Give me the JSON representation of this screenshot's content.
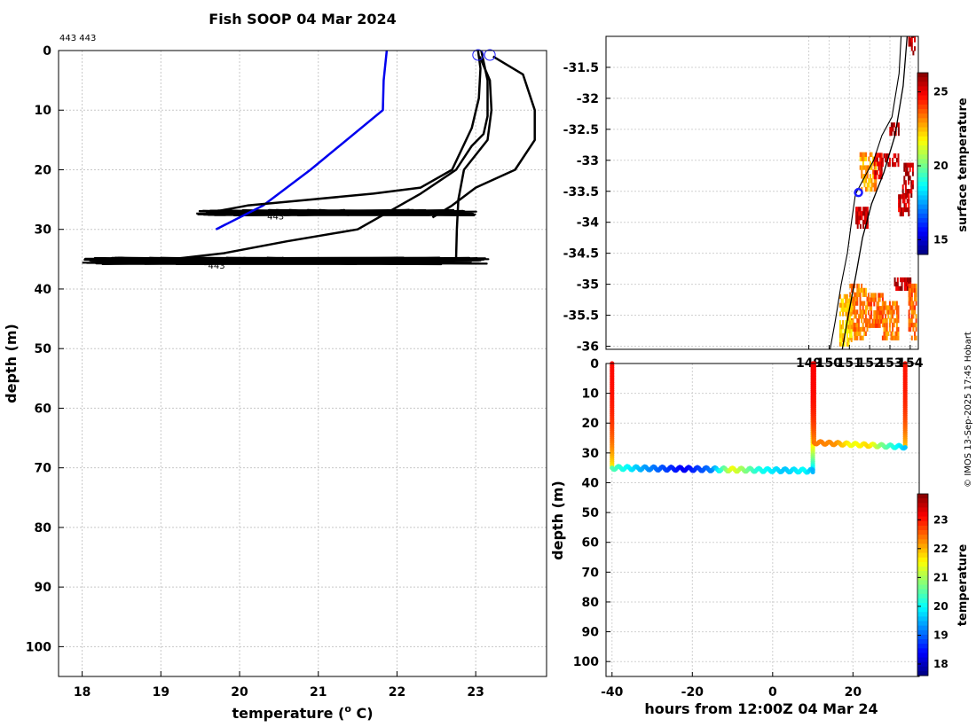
{
  "credit": "© IMOS 13-Sep-2025 17:45 Hobart",
  "colors": {
    "profile": "#000000",
    "climatology": "#0000ee",
    "marker": "#1a1aff"
  },
  "chart_data": [
    {
      "id": "profile",
      "type": "line",
      "title": "Fish SOOP 04 Mar 2024",
      "tag": "443 443",
      "xlabel": "temperature (o C)",
      "xlabel_main": "temperature (",
      "xlabel_sup": "o",
      "xlabel_end": " C)",
      "ylabel": "depth (m)",
      "xlim": [
        17.7,
        23.9
      ],
      "ylim": [
        105,
        0
      ],
      "xticks": [
        18,
        19,
        20,
        21,
        22,
        23
      ],
      "yticks": [
        0,
        10,
        20,
        30,
        40,
        50,
        60,
        70,
        80,
        90,
        100
      ],
      "series": [
        {
          "name": "climatology",
          "color": "blue",
          "points": [
            [
              21.87,
              0
            ],
            [
              21.83,
              5
            ],
            [
              21.82,
              10
            ],
            [
              20.9,
              20
            ],
            [
              20.3,
              26
            ],
            [
              19.7,
              30
            ]
          ]
        },
        {
          "name": "cast A",
          "color": "black",
          "points": [
            [
              23.03,
              0
            ],
            [
              23.06,
              3
            ],
            [
              23.04,
              8
            ],
            [
              22.95,
              13
            ],
            [
              22.7,
              20
            ],
            [
              22.3,
              23
            ],
            [
              21.7,
              24
            ],
            [
              20.9,
              25
            ],
            [
              20.1,
              26
            ],
            [
              19.7,
              27
            ]
          ]
        },
        {
          "name": "cast B",
          "color": "black",
          "points": [
            [
              23.07,
              0
            ],
            [
              23.15,
              5
            ],
            [
              23.15,
              11
            ],
            [
              23.1,
              14
            ],
            [
              22.95,
              16
            ],
            [
              22.75,
              20
            ],
            [
              22.3,
              24
            ],
            [
              21.5,
              30
            ],
            [
              20.6,
              32
            ],
            [
              19.8,
              34
            ],
            [
              18.8,
              35.5
            ]
          ]
        },
        {
          "name": "cast C",
          "color": "black",
          "points": [
            [
              23.22,
              1
            ],
            [
              23.6,
              4
            ],
            [
              23.75,
              10
            ],
            [
              23.75,
              15
            ],
            [
              23.5,
              20
            ],
            [
              23.0,
              23
            ],
            [
              22.7,
              26
            ],
            [
              22.45,
              28
            ]
          ]
        },
        {
          "name": "cast D",
          "color": "black",
          "points": [
            [
              23.05,
              1
            ],
            [
              23.18,
              5
            ],
            [
              23.2,
              10
            ],
            [
              23.15,
              15
            ],
            [
              22.85,
              20
            ],
            [
              22.78,
              25
            ],
            [
              22.76,
              30
            ],
            [
              22.75,
              35
            ]
          ]
        }
      ],
      "noisy_layers": [
        {
          "depth": 27.2,
          "x_min": 19.45,
          "x_max": 23.02,
          "spread": 0.9
        },
        {
          "depth": 35.3,
          "x_min": 18.0,
          "x_max": 23.18,
          "spread": 1.1
        }
      ],
      "surface_markers": [
        23.03,
        23.18
      ],
      "labels": [
        {
          "text": "443",
          "x": 20.35,
          "depth": 28.3
        },
        {
          "text": "443",
          "x": 19.6,
          "depth": 36.6
        }
      ]
    },
    {
      "id": "map",
      "type": "heatmap",
      "xlim": [
        139.0,
        154.4
      ],
      "ylim": [
        -36.05,
        -31.0
      ],
      "xticks": [
        149,
        150,
        151,
        152,
        153,
        154
      ],
      "xtick_labels": [
        "149",
        "150",
        "151",
        "152",
        "153",
        "154"
      ],
      "yticks": [
        -31.5,
        -32,
        -32.5,
        -33,
        -33.5,
        -34,
        -34.5,
        -35,
        -35.5,
        -36
      ],
      "ytick_labels": [
        "-31.5",
        "-32",
        "-32.5",
        "-33",
        "-33.5",
        "-34",
        "-34.5",
        "-35",
        "-35.5",
        "-36"
      ],
      "colorbar": {
        "label": "surface temperature",
        "range": [
          14.0,
          26.3
        ],
        "ticks": [
          15,
          20,
          25
        ],
        "tick_labels": [
          "15",
          "20",
          "25"
        ]
      },
      "marker": {
        "lon": 151.45,
        "lat": -33.52
      },
      "coast": [
        [
          153.55,
          -31.0
        ],
        [
          153.45,
          -31.6
        ],
        [
          153.1,
          -32.3
        ],
        [
          152.6,
          -32.6
        ],
        [
          152.2,
          -33.0
        ],
        [
          151.7,
          -33.3
        ],
        [
          151.3,
          -33.55
        ],
        [
          151.1,
          -34.0
        ],
        [
          150.9,
          -34.5
        ],
        [
          150.6,
          -35.0
        ],
        [
          150.3,
          -35.6
        ],
        [
          150.05,
          -36.05
        ]
      ],
      "track": [
        [
          153.85,
          -31.0
        ],
        [
          153.65,
          -31.8
        ],
        [
          153.25,
          -32.6
        ],
        [
          152.7,
          -33.2
        ],
        [
          152.1,
          -33.7
        ],
        [
          151.65,
          -34.25
        ],
        [
          151.35,
          -34.8
        ],
        [
          150.95,
          -35.5
        ],
        [
          150.65,
          -36.05
        ]
      ],
      "sst_patches": [
        {
          "lon": [
            151.0,
            151.9
          ],
          "lat": [
            -35.0,
            -35.9
          ],
          "temp": 23.2
        },
        {
          "lon": [
            150.5,
            151.1
          ],
          "lat": [
            -35.2,
            -36.0
          ],
          "temp": 22.3
        },
        {
          "lon": [
            151.9,
            152.6
          ],
          "lat": [
            -35.2,
            -35.7
          ],
          "temp": 23.6
        },
        {
          "lon": [
            151.5,
            152.3
          ],
          "lat": [
            -32.9,
            -33.5
          ],
          "temp": 22.8
        },
        {
          "lon": [
            152.2,
            152.6
          ],
          "lat": [
            -32.9,
            -33.3
          ],
          "temp": 25.2
        },
        {
          "lon": [
            151.3,
            151.9
          ],
          "lat": [
            -33.8,
            -34.1
          ],
          "temp": 25.3
        },
        {
          "lon": [
            152.9,
            153.4
          ],
          "lat": [
            -32.4,
            -32.6
          ],
          "temp": 25.6
        },
        {
          "lon": [
            152.6,
            153.4
          ],
          "lat": [
            -32.9,
            -33.1
          ],
          "temp": 25.5
        },
        {
          "lon": [
            153.6,
            154.1
          ],
          "lat": [
            -33.1,
            -33.6
          ],
          "temp": 25.6
        },
        {
          "lon": [
            153.4,
            153.9
          ],
          "lat": [
            -33.6,
            -33.9
          ],
          "temp": 25.3
        },
        {
          "lon": [
            153.2,
            154.0
          ],
          "lat": [
            -34.9,
            -35.1
          ],
          "temp": 25.6
        },
        {
          "lon": [
            153.9,
            154.3
          ],
          "lat": [
            -35.0,
            -35.9
          ],
          "temp": 23.5
        },
        {
          "lon": [
            152.6,
            153.4
          ],
          "lat": [
            -35.3,
            -35.9
          ],
          "temp": 23.3
        },
        {
          "lon": [
            153.9,
            154.2
          ],
          "lat": [
            -31.0,
            -31.3
          ],
          "temp": 25.6
        }
      ]
    },
    {
      "id": "timeseries",
      "type": "scatter",
      "xlabel": "hours from 12:00Z 04 Mar 24",
      "ylabel": "depth (m)",
      "xlim": [
        -41.5,
        36.5
      ],
      "ylim": [
        105,
        0
      ],
      "xticks": [
        -40,
        -20,
        0,
        20
      ],
      "yticks": [
        0,
        10,
        20,
        30,
        40,
        50,
        60,
        70,
        80,
        90,
        100
      ],
      "colorbar": {
        "label": "temperature",
        "range": [
          17.6,
          23.9
        ],
        "ticks": [
          18,
          19,
          20,
          21,
          22,
          23
        ],
        "tick_labels": [
          "18",
          "19",
          "20",
          "21",
          "22",
          "23"
        ]
      },
      "casts": [
        {
          "x": -40.0,
          "max_depth": 35.0,
          "t_surface": 23.05,
          "t_bottom": 21.6
        },
        {
          "x": 10.0,
          "max_depth": 36.5,
          "t_surface": 23.2,
          "t_bottom": 19.5
        },
        {
          "x": 10.3,
          "max_depth": 26.5,
          "t_surface": 23.1,
          "t_bottom": 22.3
        },
        {
          "x": 33.0,
          "max_depth": 28.0,
          "t_surface": 23.0,
          "t_bottom": 21.9
        }
      ],
      "bottom_legs": [
        {
          "x_start": -40.0,
          "x_end": 10.0,
          "depth_start": 35.0,
          "depth_end": 36.0,
          "wave": 0.6,
          "temps": [
            [
              -40,
              20.5
            ],
            [
              -32,
              19.4
            ],
            [
              -22,
              18.3
            ],
            [
              -15,
              19.2
            ],
            [
              -10,
              21.5
            ],
            [
              -4,
              20.2
            ],
            [
              3,
              19.6
            ],
            [
              8,
              20.0
            ],
            [
              10,
              19.5
            ]
          ]
        },
        {
          "x_start": 10.3,
          "x_end": 33.0,
          "depth_start": 26.5,
          "depth_end": 28.0,
          "wave": 0.5,
          "temps": [
            [
              10.3,
              22.4
            ],
            [
              16,
              22.2
            ],
            [
              20,
              21.4
            ],
            [
              24,
              21.8
            ],
            [
              27,
              20.8
            ],
            [
              33,
              19.6
            ]
          ]
        }
      ]
    }
  ]
}
